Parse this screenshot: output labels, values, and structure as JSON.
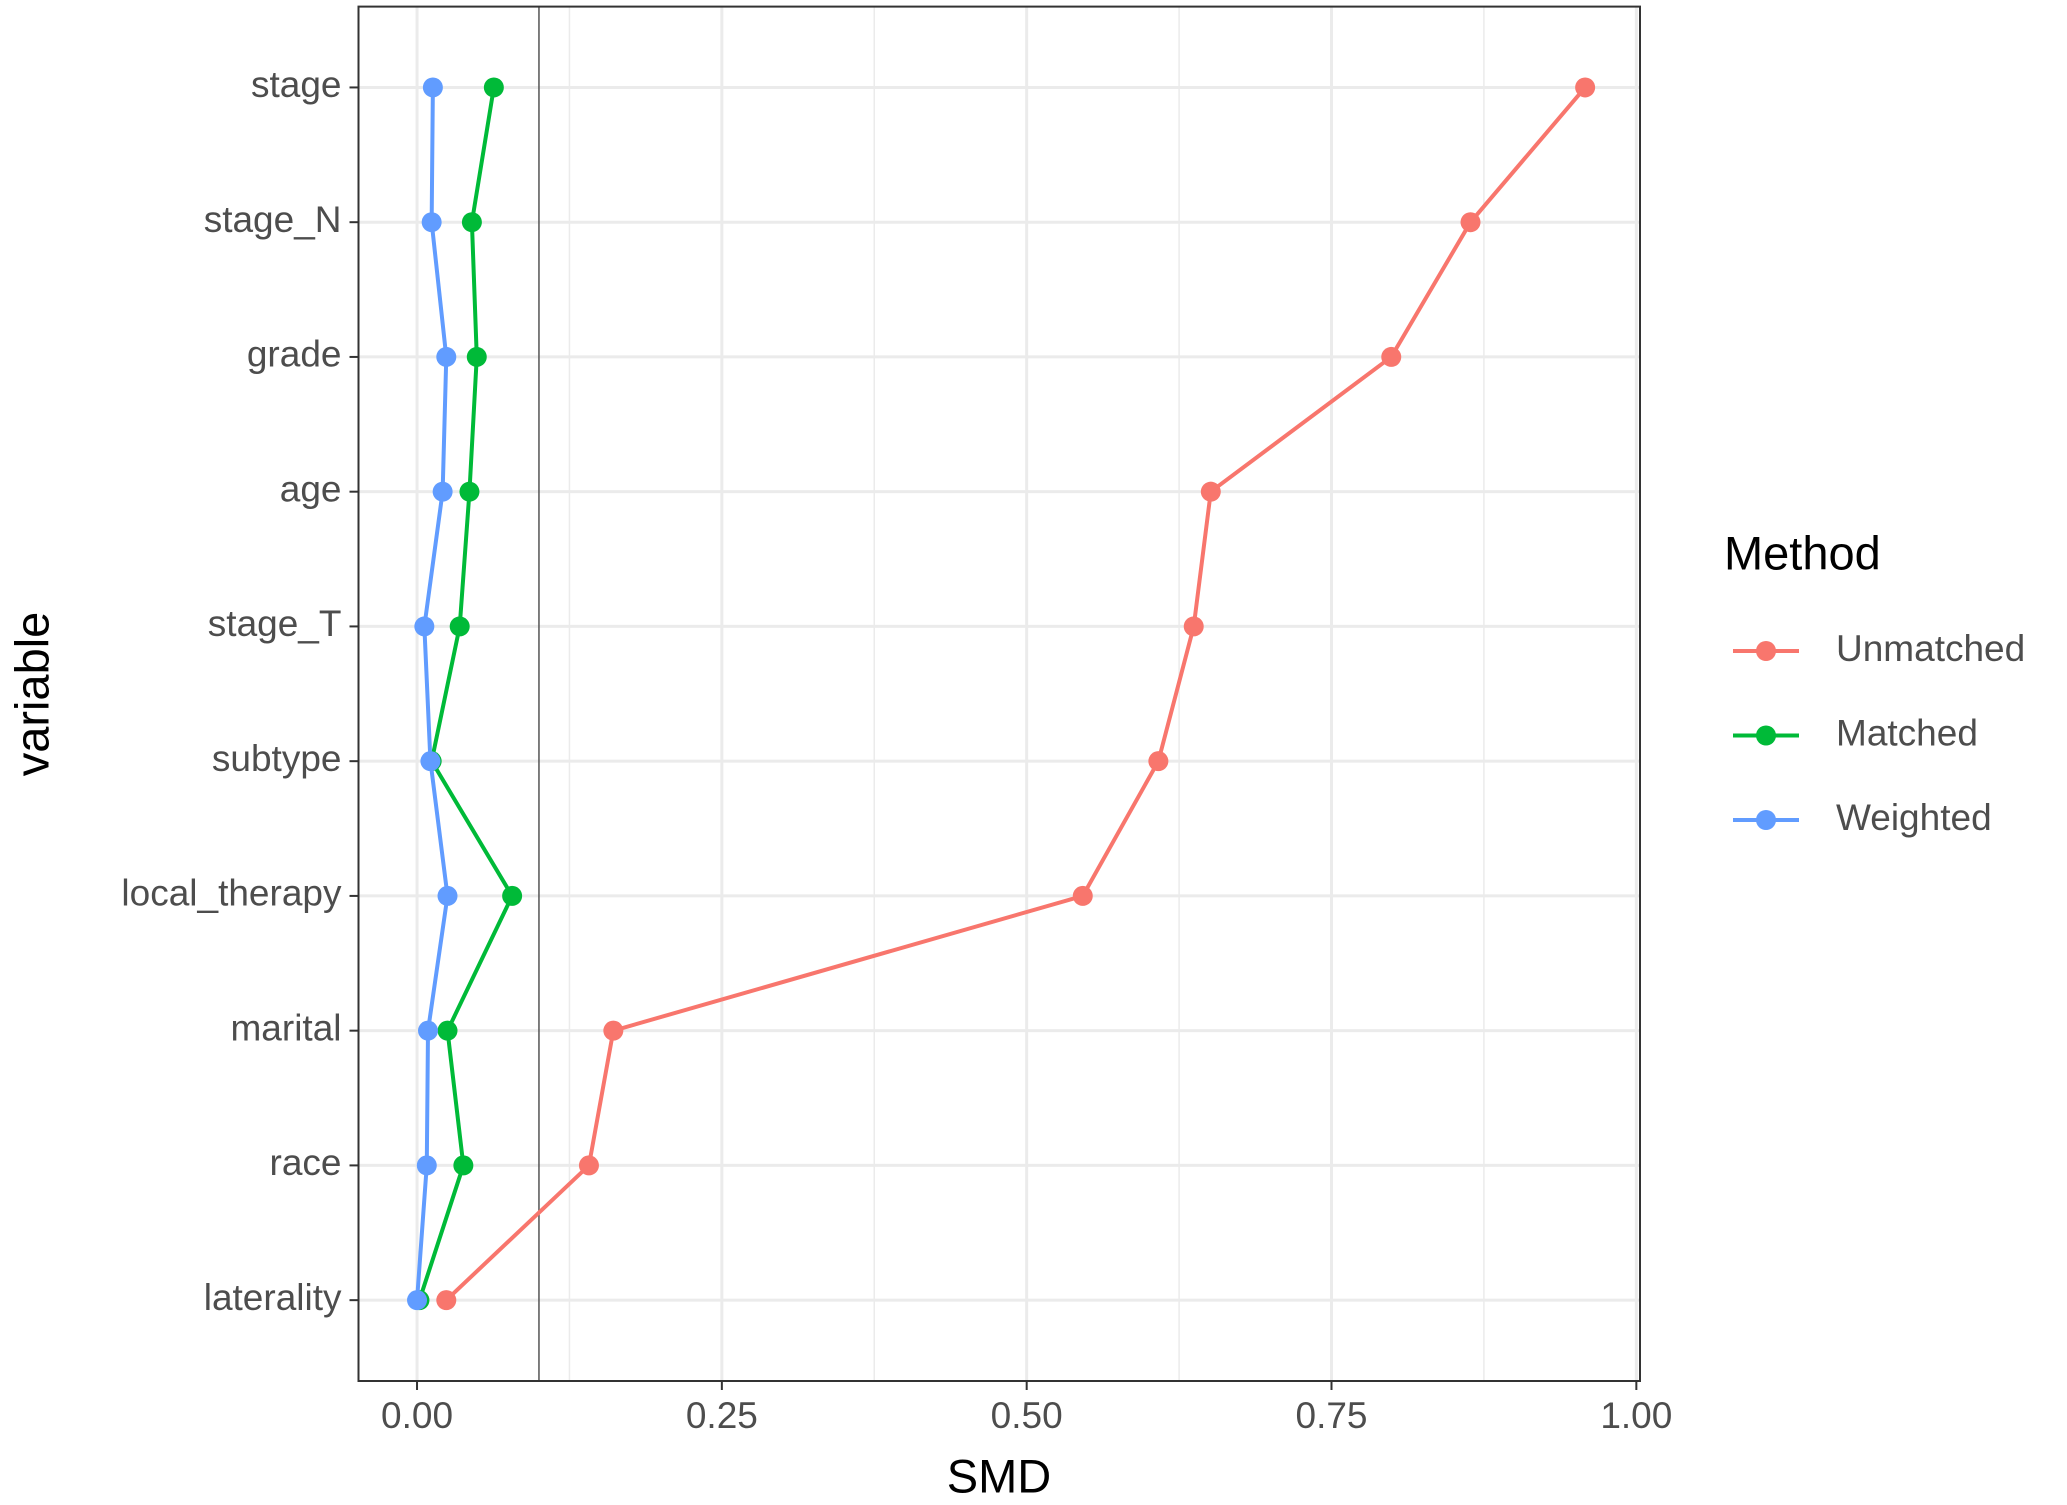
{
  "chart_data": {
    "type": "line",
    "x_axis_label": "SMD",
    "y_axis_label": "variable",
    "legend_title": "Method",
    "legend_position": "right",
    "grid": true,
    "categories": [
      "laterality",
      "race",
      "marital",
      "local_therapy",
      "subtype",
      "stage_T",
      "age",
      "grade",
      "stage_N",
      "stage"
    ],
    "series": [
      {
        "name": "Unmatched",
        "color": "#F8766D",
        "values": [
          0.024,
          0.141,
          0.161,
          0.546,
          0.608,
          0.637,
          0.651,
          0.799,
          0.864,
          0.958
        ]
      },
      {
        "name": "Matched",
        "color": "#00BA38",
        "values": [
          0.002,
          0.038,
          0.025,
          0.078,
          0.012,
          0.035,
          0.043,
          0.049,
          0.045,
          0.063
        ]
      },
      {
        "name": "Weighted",
        "color": "#619CFF",
        "values": [
          0.0,
          0.008,
          0.009,
          0.025,
          0.011,
          0.006,
          0.021,
          0.024,
          0.012,
          0.013
        ]
      }
    ],
    "xlim": [
      -0.048,
      1.003
    ],
    "xticks": [
      {
        "value": 0,
        "label": "0.00"
      },
      {
        "value": 0.25,
        "label": "0.25"
      },
      {
        "value": 0.5,
        "label": "0.50"
      },
      {
        "value": 0.75,
        "label": "0.75"
      },
      {
        "value": 1,
        "label": "1.00"
      }
    ],
    "x_minor_ticks": [
      0.125,
      0.375,
      0.625,
      0.875
    ],
    "reference_line": 0.1
  }
}
